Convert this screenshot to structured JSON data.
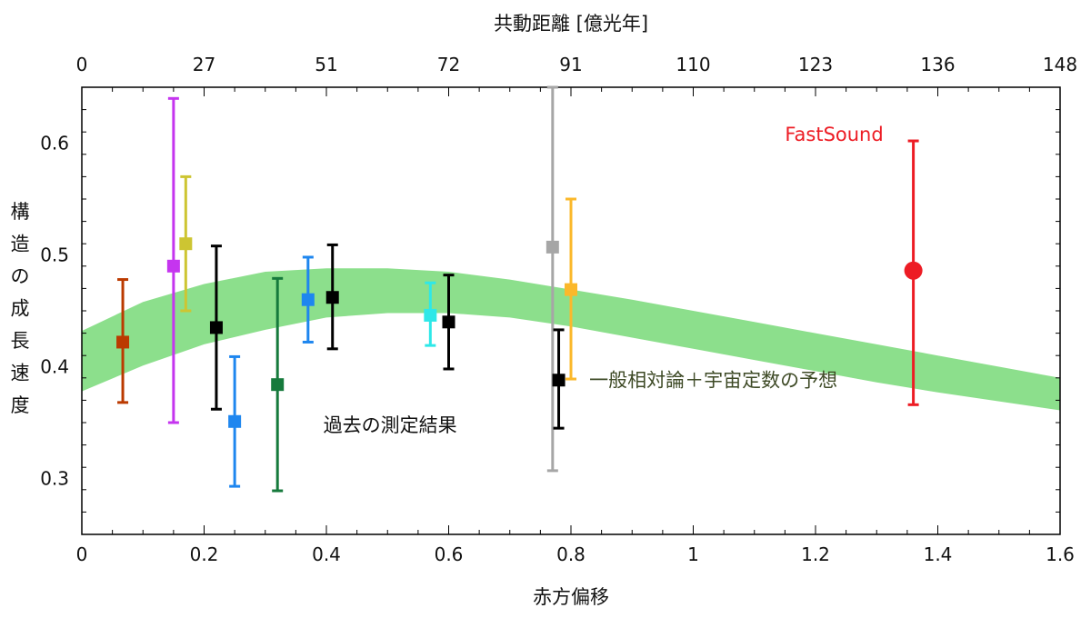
{
  "chart_data": {
    "type": "scatter",
    "xlabel": "赤方偏移",
    "ylabel": "構造の成長速度",
    "top_axis_label": "共動距離 [億光年]",
    "xlim": [
      0,
      1.6
    ],
    "ylim": [
      0.25,
      0.65
    ],
    "grid": false,
    "x_ticks": [
      {
        "value": 0,
        "label": "0"
      },
      {
        "value": 0.2,
        "label": "0.2"
      },
      {
        "value": 0.4,
        "label": "0.4"
      },
      {
        "value": 0.6,
        "label": "0.6"
      },
      {
        "value": 0.8,
        "label": "0.8"
      },
      {
        "value": 1.0,
        "label": "1"
      },
      {
        "value": 1.2,
        "label": "1.2"
      },
      {
        "value": 1.4,
        "label": "1.4"
      },
      {
        "value": 1.6,
        "label": "1.6"
      }
    ],
    "y_ticks": [
      {
        "value": 0.3,
        "label": "0.3"
      },
      {
        "value": 0.4,
        "label": "0.4"
      },
      {
        "value": 0.5,
        "label": "0.5"
      },
      {
        "value": 0.6,
        "label": "0.6"
      }
    ],
    "top_ticks": [
      {
        "value": 0,
        "label": "0"
      },
      {
        "value": 0.2,
        "label": "27"
      },
      {
        "value": 0.4,
        "label": "51"
      },
      {
        "value": 0.6,
        "label": "72"
      },
      {
        "value": 0.8,
        "label": "91"
      },
      {
        "value": 1.0,
        "label": "110"
      },
      {
        "value": 1.2,
        "label": "123"
      },
      {
        "value": 1.4,
        "label": "136"
      },
      {
        "value": 1.6,
        "label": "148"
      }
    ],
    "band": {
      "color": "#8cdf8c",
      "x": [
        0,
        0.1,
        0.2,
        0.3,
        0.4,
        0.5,
        0.6,
        0.7,
        0.8,
        0.9,
        1.0,
        1.1,
        1.2,
        1.3,
        1.4,
        1.5,
        1.6
      ],
      "lower": [
        0.378,
        0.401,
        0.42,
        0.433,
        0.444,
        0.448,
        0.448,
        0.444,
        0.436,
        0.426,
        0.416,
        0.406,
        0.396,
        0.386,
        0.377,
        0.369,
        0.361
      ],
      "upper": [
        0.432,
        0.458,
        0.474,
        0.485,
        0.488,
        0.488,
        0.485,
        0.478,
        0.469,
        0.46,
        0.45,
        0.44,
        0.43,
        0.42,
        0.41,
        0.4,
        0.39
      ]
    },
    "points": [
      {
        "x": 0.067,
        "y": 0.422,
        "lo": 0.368,
        "hi": 0.478,
        "color": "#bb3a00",
        "marker": "square"
      },
      {
        "x": 0.15,
        "y": 0.49,
        "lo": 0.35,
        "hi": 0.64,
        "color": "#c535ef",
        "marker": "square"
      },
      {
        "x": 0.17,
        "y": 0.51,
        "lo": 0.45,
        "hi": 0.57,
        "color": "#cdc532",
        "marker": "square"
      },
      {
        "x": 0.22,
        "y": 0.435,
        "lo": 0.362,
        "hi": 0.508,
        "color": "#000000",
        "marker": "square"
      },
      {
        "x": 0.25,
        "y": 0.351,
        "lo": 0.293,
        "hi": 0.409,
        "color": "#1e86ef",
        "marker": "square"
      },
      {
        "x": 0.32,
        "y": 0.384,
        "lo": 0.289,
        "hi": 0.479,
        "color": "#167a3c",
        "marker": "square"
      },
      {
        "x": 0.37,
        "y": 0.46,
        "lo": 0.422,
        "hi": 0.498,
        "color": "#1e86ef",
        "marker": "square"
      },
      {
        "x": 0.41,
        "y": 0.462,
        "lo": 0.416,
        "hi": 0.509,
        "color": "#000000",
        "marker": "square"
      },
      {
        "x": 0.57,
        "y": 0.446,
        "lo": 0.419,
        "hi": 0.475,
        "color": "#2ee8e8",
        "marker": "square"
      },
      {
        "x": 0.6,
        "y": 0.44,
        "lo": 0.398,
        "hi": 0.482,
        "color": "#000000",
        "marker": "square"
      },
      {
        "x": 0.77,
        "y": 0.507,
        "lo": 0.307,
        "hi": 0.65,
        "color": "#a6a6a6",
        "marker": "square"
      },
      {
        "x": 0.78,
        "y": 0.388,
        "lo": 0.345,
        "hi": 0.433,
        "color": "#000000",
        "marker": "square"
      },
      {
        "x": 0.8,
        "y": 0.469,
        "lo": 0.389,
        "hi": 0.55,
        "color": "#fbb82b",
        "marker": "square"
      },
      {
        "x": 1.36,
        "y": 0.486,
        "lo": 0.366,
        "hi": 0.602,
        "color": "#ed1c24",
        "marker": "circle"
      }
    ],
    "annotations": [
      {
        "text": "FastSound",
        "x": 1.15,
        "y": 0.602,
        "color": "#ed1c24"
      },
      {
        "text": "一般相対論＋宇宙定数の予想",
        "x": 0.83,
        "y": 0.382,
        "color": "#3e4a26"
      },
      {
        "text": "過去の測定結果",
        "x": 0.395,
        "y": 0.342,
        "color": "#111111"
      }
    ]
  }
}
